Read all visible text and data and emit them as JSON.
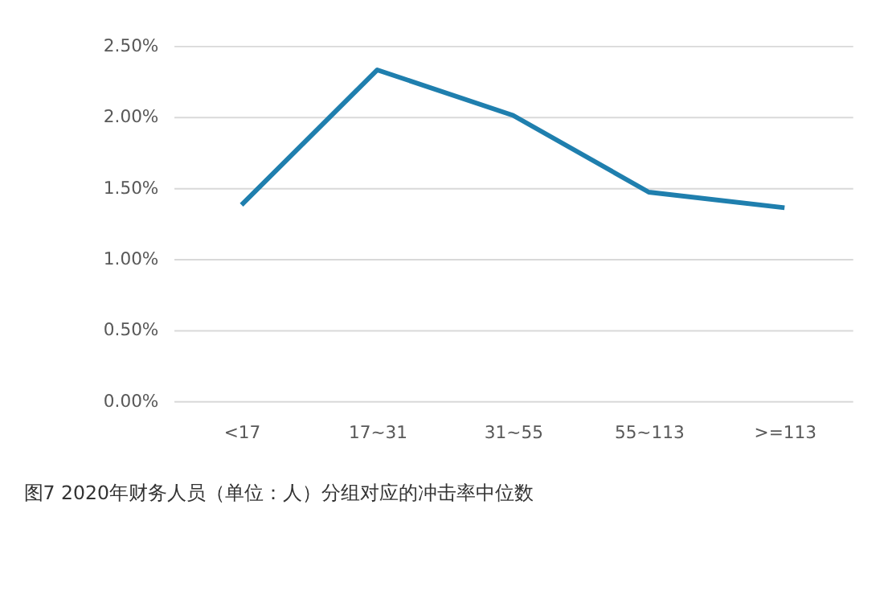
{
  "chart_data": {
    "type": "line",
    "title": "图7 2020年财务人员（单位：人）分组对应的冲击率中位数",
    "categories": [
      "<17",
      "17~31",
      "31~55",
      "55~113",
      ">=113"
    ],
    "series": [
      {
        "color": "#1f7fae",
        "values": [
          1.38,
          2.33,
          2.01,
          1.47,
          1.36
        ]
      }
    ],
    "ylim": [
      0,
      2.5
    ],
    "yticks": [
      {
        "value": 0,
        "label": "0.00%"
      },
      {
        "value": 0.5,
        "label": "0.50%"
      },
      {
        "value": 1.0,
        "label": "1.00%"
      },
      {
        "value": 1.5,
        "label": "1.50%"
      },
      {
        "value": 2.0,
        "label": "2.00%"
      },
      {
        "value": 2.5,
        "label": "2.50%"
      }
    ],
    "grid": "y",
    "marker": "none",
    "line_style": "solid"
  }
}
